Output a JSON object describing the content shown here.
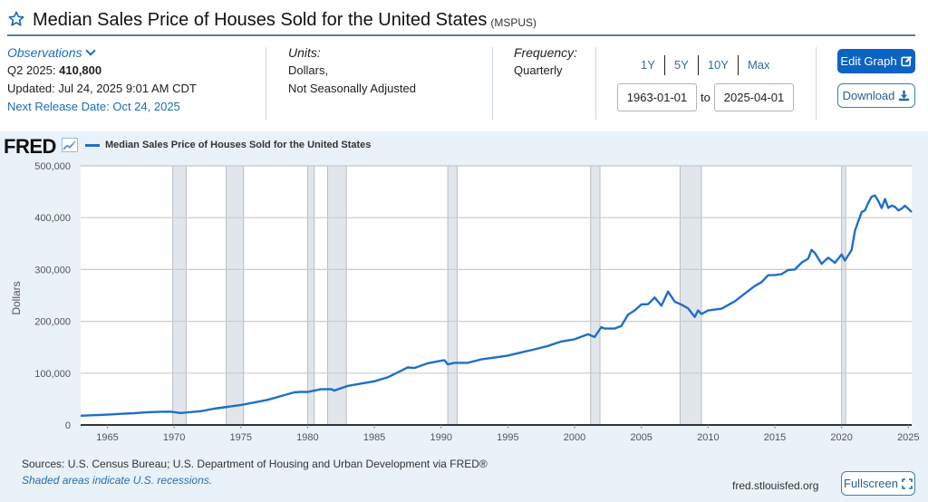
{
  "header": {
    "title": "Median Sales Price of Houses Sold for the United States",
    "series_code": "(MSPUS)",
    "star_icon": "star-outline-icon"
  },
  "observations": {
    "label": "Observations",
    "latest_period": "Q2 2025:",
    "latest_value": "410,800",
    "updated": "Updated: Jul 24, 2025 9:01 AM CDT",
    "next_release": "Next Release Date: Oct 24, 2025"
  },
  "units": {
    "label": "Units:",
    "line1": "Dollars,",
    "line2": "Not Seasonally Adjusted"
  },
  "frequency": {
    "label": "Frequency:",
    "value": "Quarterly"
  },
  "range": {
    "links": [
      "1Y",
      "5Y",
      "10Y",
      "Max"
    ],
    "start": "1963-01-01",
    "to_label": "to",
    "end": "2025-04-01"
  },
  "buttons": {
    "edit_graph": "Edit Graph",
    "download": "Download",
    "fullscreen": "Fullscreen"
  },
  "chart_header": {
    "logo": "FRED",
    "legend": "Median Sales Price of Houses Sold for the United States"
  },
  "footer": {
    "sources": "Sources: U.S. Census Bureau; U.S. Department of Housing and Urban Development via FRED®",
    "shaded_note": "Shaded areas indicate U.S. recessions.",
    "site": "fred.stlouisfed.org"
  },
  "colors": {
    "line": "#1f6fc6",
    "recession": "#e1e6ec",
    "accent": "#0b63c4"
  },
  "chart_data": {
    "type": "line",
    "title": "Median Sales Price of Houses Sold for the United States",
    "xlabel": "",
    "ylabel": "Dollars",
    "xlim": [
      1963.0,
      2025.25
    ],
    "ylim": [
      0,
      500000
    ],
    "yticks": [
      0,
      100000,
      200000,
      300000,
      400000,
      500000
    ],
    "ytick_labels": [
      "0",
      "100,000",
      "200,000",
      "300,000",
      "400,000",
      "500,000"
    ],
    "xticks": [
      1965,
      1970,
      1975,
      1980,
      1985,
      1990,
      1995,
      2000,
      2005,
      2010,
      2015,
      2020,
      2025
    ],
    "xtick_labels": [
      "1965",
      "1970",
      "1975",
      "1980",
      "1985",
      "1990",
      "1995",
      "2000",
      "2005",
      "2010",
      "2015",
      "2020",
      "2025"
    ],
    "grid": true,
    "legend": "top-left",
    "recessions": [
      [
        1969.9,
        1970.9
      ],
      [
        1973.9,
        1975.2
      ],
      [
        1980.0,
        1980.5
      ],
      [
        1981.5,
        1982.9
      ],
      [
        1990.5,
        1991.2
      ],
      [
        2001.2,
        2001.9
      ],
      [
        2007.9,
        2009.5
      ],
      [
        2020.0,
        2020.3
      ]
    ],
    "series": [
      {
        "name": "Median Sales Price of Houses Sold for the United States",
        "x": [
          1963.0,
          1964.0,
          1965.0,
          1966.0,
          1967.0,
          1968.0,
          1969.0,
          1969.75,
          1970.5,
          1971.0,
          1972.0,
          1973.0,
          1974.0,
          1975.0,
          1976.0,
          1977.0,
          1978.0,
          1979.0,
          1979.5,
          1980.0,
          1981.0,
          1981.75,
          1982.0,
          1983.0,
          1984.0,
          1985.0,
          1986.0,
          1987.0,
          1987.5,
          1988.0,
          1989.0,
          1990.0,
          1990.25,
          1990.5,
          1991.0,
          1992.0,
          1993.0,
          1994.0,
          1995.0,
          1996.0,
          1997.0,
          1998.0,
          1999.0,
          2000.0,
          2001.0,
          2001.5,
          2002.0,
          2002.25,
          2003.0,
          2003.5,
          2004.0,
          2004.5,
          2005.0,
          2005.5,
          2006.0,
          2006.5,
          2007.0,
          2007.5,
          2008.0,
          2008.5,
          2009.0,
          2009.25,
          2009.5,
          2010.0,
          2011.0,
          2012.0,
          2013.0,
          2013.5,
          2014.0,
          2014.5,
          2015.0,
          2015.5,
          2016.0,
          2016.5,
          2017.0,
          2017.5,
          2017.75,
          2018.0,
          2018.5,
          2019.0,
          2019.5,
          2020.0,
          2020.25,
          2020.75,
          2021.0,
          2021.5,
          2021.75,
          2022.0,
          2022.25,
          2022.5,
          2022.75,
          2023.0,
          2023.25,
          2023.5,
          2023.75,
          2024.0,
          2024.25,
          2024.5,
          2024.75,
          2025.0,
          2025.25
        ],
        "values": [
          17800,
          18900,
          20000,
          21500,
          22700,
          24700,
          25600,
          25700,
          23000,
          24300,
          26500,
          31500,
          35000,
          38700,
          43300,
          48500,
          55700,
          62900,
          64000,
          63700,
          68900,
          69300,
          66400,
          75300,
          79900,
          84300,
          92000,
          104500,
          111000,
          110000,
          119000,
          123900,
          125000,
          117000,
          120000,
          120000,
          126500,
          130000,
          133900,
          140000,
          145900,
          152500,
          161000,
          165300,
          175000,
          169800,
          188700,
          186000,
          186000,
          191000,
          212700,
          221000,
          232500,
          233000,
          246000,
          230000,
          257400,
          238000,
          232100,
          225000,
          208400,
          220900,
          214000,
          221000,
          224300,
          238400,
          258400,
          268100,
          275500,
          289000,
          289200,
          291000,
          298900,
          300000,
          313100,
          321000,
          337900,
          331800,
          311000,
          322800,
          313000,
          329000,
          317100,
          337500,
          374800,
          411000,
          414000,
          428700,
          440300,
          442600,
          432000,
          418500,
          436000,
          418800,
          423200,
          420800,
          414000,
          417300,
          423000,
          416900,
          410800
        ]
      }
    ]
  }
}
